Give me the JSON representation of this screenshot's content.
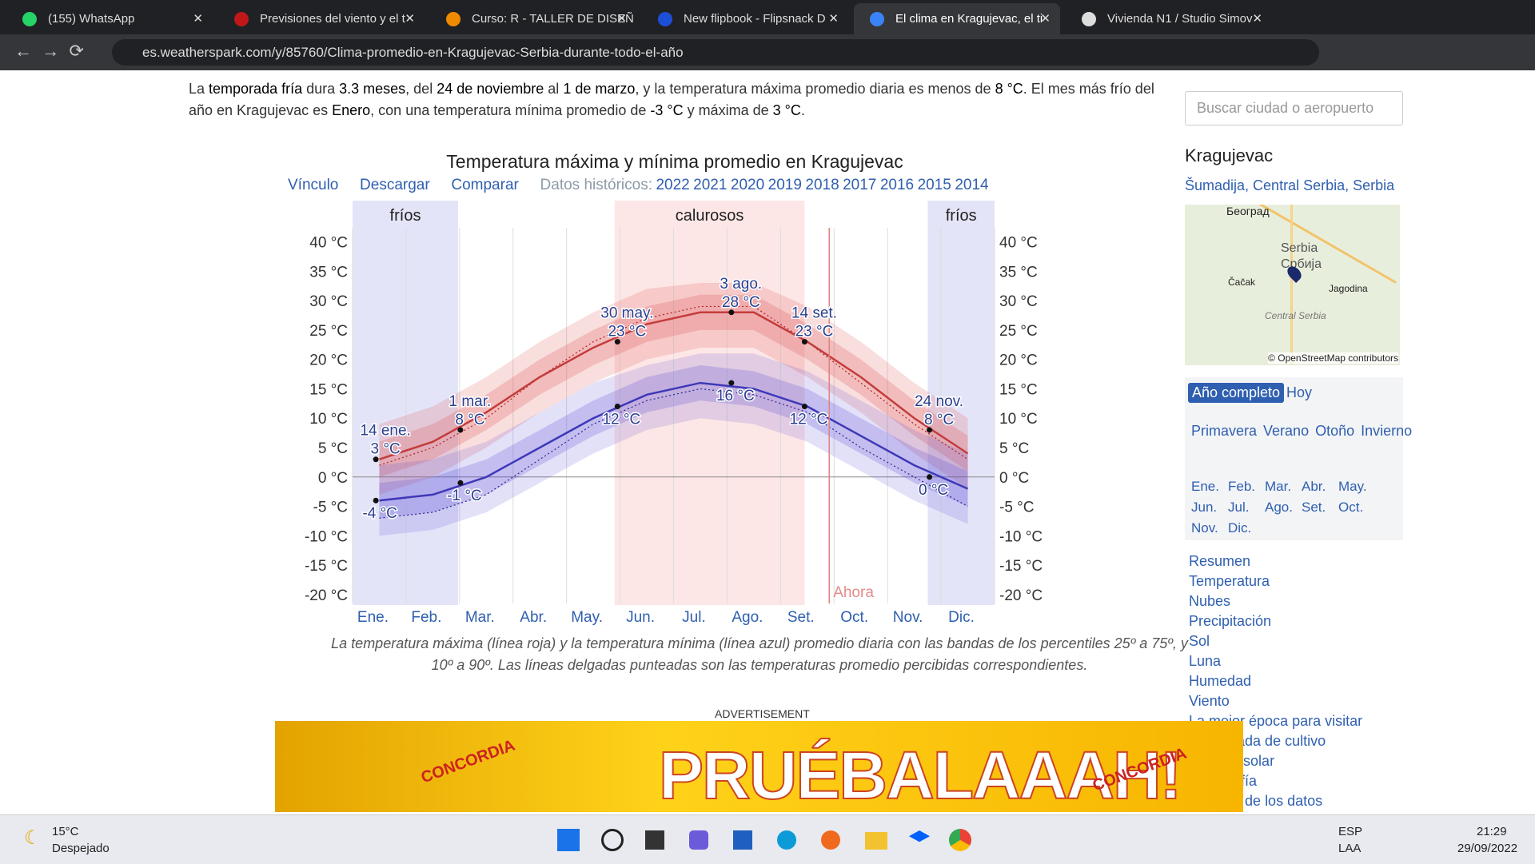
{
  "browser": {
    "tabs": [
      "(155) WhatsApp",
      "Previsiones del viento y el t",
      "Curso: R - TALLER DE DISEÑ",
      "New flipbook - Flipsnack D",
      "El clima en Kragujevac, el ti",
      "Vivienda N1 / Studio Simov"
    ],
    "url": "es.weatherspark.com/y/85760/Clima-promedio-en-Kragujevac-Serbia-durante-todo-el-año"
  },
  "intro": [
    {
      "t": "La ",
      "b": false
    },
    {
      "t": "temporada fría",
      "b": true
    },
    {
      "t": " dura ",
      "b": false
    },
    {
      "t": "3.3 meses",
      "b": true
    },
    {
      "t": ", del ",
      "b": false
    },
    {
      "t": "24 de noviembre",
      "b": true
    },
    {
      "t": " al ",
      "b": false
    },
    {
      "t": "1 de marzo",
      "b": true
    },
    {
      "t": ", y la temperatura máxima promedio diaria es menos de ",
      "b": false
    },
    {
      "t": "8 °C",
      "b": true
    },
    {
      "t": ". El mes más frío del año en Kragujevac es ",
      "b": false
    },
    {
      "t": "Enero",
      "b": true
    },
    {
      "t": ", con una temperatura mínima promedio de ",
      "b": false
    },
    {
      "t": "-3 °C",
      "b": true
    },
    {
      "t": " y máxima de ",
      "b": false
    },
    {
      "t": "3 °C",
      "b": true
    },
    {
      "t": ".",
      "b": false
    }
  ],
  "chart_links": {
    "link": "Vínculo",
    "download": "Descargar",
    "compare": "Comparar",
    "history": "Datos históricos:",
    "years": [
      "2022",
      "2021",
      "2020",
      "2019",
      "2018",
      "2017",
      "2016",
      "2015",
      "2014"
    ]
  },
  "chart_data": {
    "type": "line",
    "title": "Temperatura máxima y mínima promedio en Kragujevac",
    "categories": [
      "Ene.",
      "Feb.",
      "Mar.",
      "Abr.",
      "May.",
      "Jun.",
      "Jul.",
      "Ago.",
      "Set.",
      "Oct.",
      "Nov.",
      "Dic."
    ],
    "ylim": [
      -21.5,
      47
    ],
    "yticks": [
      {
        "value": 40,
        "label": "40 °C"
      },
      {
        "value": 35,
        "label": "35 °C"
      },
      {
        "value": 30,
        "label": "30 °C"
      },
      {
        "value": 25,
        "label": "25 °C"
      },
      {
        "value": 20,
        "label": "20 °C"
      },
      {
        "value": 15,
        "label": "15 °C"
      },
      {
        "value": 10,
        "label": "10 °C"
      },
      {
        "value": 5,
        "label": "5 °C"
      },
      {
        "value": 0,
        "label": "0 °C"
      },
      {
        "value": -5,
        "label": "-5 °C"
      },
      {
        "value": -10,
        "label": "-10 °C"
      },
      {
        "value": -15,
        "label": "-15 °C"
      },
      {
        "value": -20,
        "label": "-20 °C"
      }
    ],
    "seasons": [
      "fríos",
      "calurosos",
      "fríos"
    ],
    "now": "Ahora",
    "series": [
      {
        "color": "#c43c3c",
        "values": [
          3,
          6,
          11,
          17,
          22,
          26,
          28,
          28,
          23,
          17,
          10,
          4
        ]
      },
      {
        "color": "#3f38b8",
        "values": [
          -4,
          -3,
          0,
          5,
          10,
          14,
          16,
          15,
          12,
          7,
          2,
          -2
        ]
      }
    ],
    "feels": [
      {
        "color": "#b02020",
        "values": [
          2,
          5,
          10,
          17,
          23,
          27,
          29,
          29,
          23,
          16,
          9,
          3
        ]
      },
      {
        "color": "#2a2490",
        "values": [
          -7,
          -6,
          -3,
          3,
          9,
          13,
          15,
          14,
          11,
          5,
          0,
          -5
        ]
      }
    ],
    "bands": [
      {
        "color": "rgba(220,70,70,0.18)",
        "lower": [
          -3,
          0,
          5,
          11,
          16,
          20,
          22,
          22,
          17,
          11,
          4,
          -2
        ],
        "upper": [
          9,
          12,
          17,
          23,
          28,
          32,
          33,
          33,
          29,
          23,
          16,
          10
        ]
      },
      {
        "color": "rgba(220,70,70,0.22)",
        "lower": [
          0,
          3,
          8,
          14,
          19,
          23,
          25,
          25,
          20,
          14,
          7,
          1
        ],
        "upper": [
          6,
          9,
          14,
          20,
          25,
          29,
          31,
          31,
          26,
          20,
          13,
          7
        ]
      },
      {
        "color": "rgba(80,70,210,0.16)",
        "lower": [
          -10,
          -9,
          -6,
          -1,
          4,
          8,
          10,
          9,
          6,
          1,
          -4,
          -8
        ],
        "upper": [
          2,
          3,
          6,
          11,
          16,
          19,
          21,
          21,
          18,
          13,
          8,
          4
        ]
      },
      {
        "color": "rgba(80,70,210,0.22)",
        "lower": [
          -7,
          -6,
          -3,
          2,
          7,
          11,
          13,
          12,
          9,
          4,
          -1,
          -5
        ],
        "upper": [
          -1,
          0,
          3,
          8,
          13,
          17,
          19,
          18,
          15,
          10,
          5,
          1
        ]
      }
    ],
    "annotations": [
      {
        "date": "14 ene.",
        "max": 3,
        "max_label": "3 °C",
        "min": -4,
        "min_label": "-4 °C"
      },
      {
        "date": "1 mar.",
        "max": 8,
        "max_label": "8 °C",
        "min": -1,
        "min_label": "-1 °C"
      },
      {
        "date": "30 may.",
        "max": 23,
        "max_label": "23 °C",
        "min": 12,
        "min_label": "12 °C"
      },
      {
        "date": "3 ago.",
        "max": 28,
        "max_label": "28 °C",
        "min": 16,
        "min_label": "16 °C"
      },
      {
        "date": "14 set.",
        "max": 23,
        "max_label": "23 °C",
        "min": 12,
        "min_label": "12 °C"
      },
      {
        "date": "24 nov.",
        "max": 8,
        "max_label": "8 °C",
        "min": 0,
        "min_label": "0 °C"
      }
    ]
  },
  "caption": "La temperatura máxima (línea roja) y la temperatura mínima (línea azul) promedio diaria con las bandas de los percentiles 25º a 75º, y 10º a 90º. Las líneas delgadas punteadas son las temperaturas promedio percibidas correspondientes.",
  "ad": {
    "label": "ADVERTISEMENT",
    "text": "PRUÉBALAAAH!",
    "brand": "CONCORDIA"
  },
  "sidebar": {
    "search": "Buscar ciudad o aeropuerto",
    "city": "Kragujevac",
    "region": "Šumadija, Central Serbia, Serbia",
    "map_labels": [
      "Београд",
      "Serbia",
      "Србија",
      "Čačak",
      "Jagodina",
      "Central Serbia"
    ],
    "map_credit": "© OpenStreetMap contributors",
    "full_year": "Año completo",
    "today": "Hoy",
    "seasons": [
      "Primavera",
      "Verano",
      "Otoño",
      "Invierno"
    ],
    "months": [
      "Ene.",
      "Feb.",
      "Mar.",
      "Abr.",
      "May.",
      "Jun.",
      "Jul.",
      "Ago.",
      "Set.",
      "Oct.",
      "Nov.",
      "Dic."
    ],
    "nav": [
      "Resumen",
      "Temperatura",
      "Nubes",
      "Precipitación",
      "Sol",
      "Luna",
      "Humedad",
      "Viento",
      "La mejor época para visitar",
      "Temporada de cultivo",
      "Energía solar",
      "Topografía",
      "Fuentes de los datos"
    ]
  },
  "taskbar": {
    "temp": "15°C",
    "weather": "Despejado",
    "lang": "ESP",
    "layout": "LAA",
    "time": "21:29",
    "date": "29/09/2022"
  }
}
